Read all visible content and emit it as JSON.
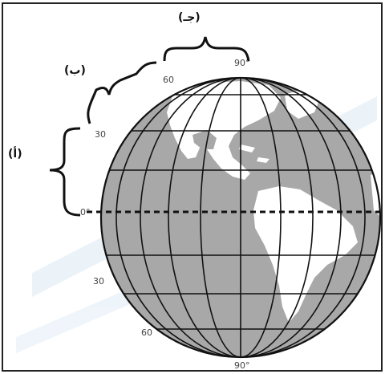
{
  "labels": {
    "lat_90_north": "90°",
    "lat_60_north": "60",
    "lat_30_north": "30",
    "lat_0": "0°",
    "lat_30_south": "30",
    "lat_60_south": "60",
    "lat_90_south": "90°"
  },
  "brackets": {
    "a": "(أ)",
    "b": "(ب)",
    "c": "(جـ)"
  },
  "colors": {
    "land": "#ffffff",
    "ocean": "#a8a8a8",
    "grid": "#111111",
    "watermark": "#dcebf6",
    "frame": "#222222"
  }
}
